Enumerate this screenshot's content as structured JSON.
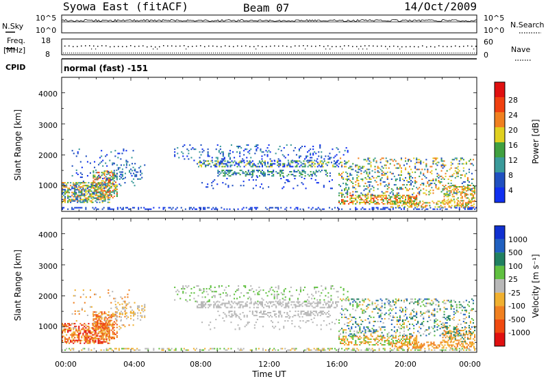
{
  "header": {
    "station": "Syowa East (fitACF)",
    "beam": "Beam 07",
    "date": "14/Oct/2009"
  },
  "top_panels": {
    "nsky_label": "N.Sky",
    "nsky_ticks": [
      "10^5",
      "10^0"
    ],
    "nsearch_label": "N.Search",
    "nsearch_ticks": [
      "10^5",
      "10^0"
    ],
    "freq_label": "Freq.",
    "freq_unit": "[MHz]",
    "freq_ticks": [
      "18",
      "8"
    ],
    "nave_label": "Nave",
    "nave_ticks": [
      "60",
      "0"
    ],
    "cpid_label": "CPID",
    "cpid_value": "normal (fast) -151"
  },
  "colors": {
    "power": [
      "#1030f0",
      "#2050c0",
      "#3a9a9a",
      "#40a040",
      "#e0d020",
      "#f08020",
      "#f04010",
      "#e01010"
    ],
    "velocity": [
      "#e01010",
      "#f04a10",
      "#f08020",
      "#f0b030",
      "#b8b8b8",
      "#60c040",
      "#208060",
      "#2060c0",
      "#1030d0"
    ]
  },
  "chart_data": [
    {
      "type": "heatmap",
      "name": "power-panel",
      "xlabel": "",
      "ylabel": "Slant Range [km]",
      "xlim": [
        0,
        24
      ],
      "ylim": [
        180,
        4500
      ],
      "yticks": [
        "1000",
        "2000",
        "3000",
        "4000"
      ],
      "colorbar": {
        "label": "Power [dB]",
        "ticks": [
          "4",
          "8",
          "12",
          "16",
          "20",
          "24",
          "28"
        ],
        "range": [
          0,
          30
        ]
      }
    },
    {
      "type": "heatmap",
      "name": "velocity-panel",
      "xlabel": "Time UT",
      "ylabel": "Slant Range [km]",
      "xlim": [
        0,
        24
      ],
      "ylim": [
        180,
        4500
      ],
      "xticks": [
        "00:00",
        "04:00",
        "08:00",
        "12:00",
        "16:00",
        "20:00",
        "00:00"
      ],
      "yticks": [
        "1000",
        "2000",
        "3000",
        "4000"
      ],
      "colorbar": {
        "label": "Velocity [m s⁻¹]",
        "ticks": [
          "1000",
          "500",
          "100",
          "25",
          "-25",
          "-100",
          "-500",
          "-1000"
        ]
      }
    }
  ]
}
